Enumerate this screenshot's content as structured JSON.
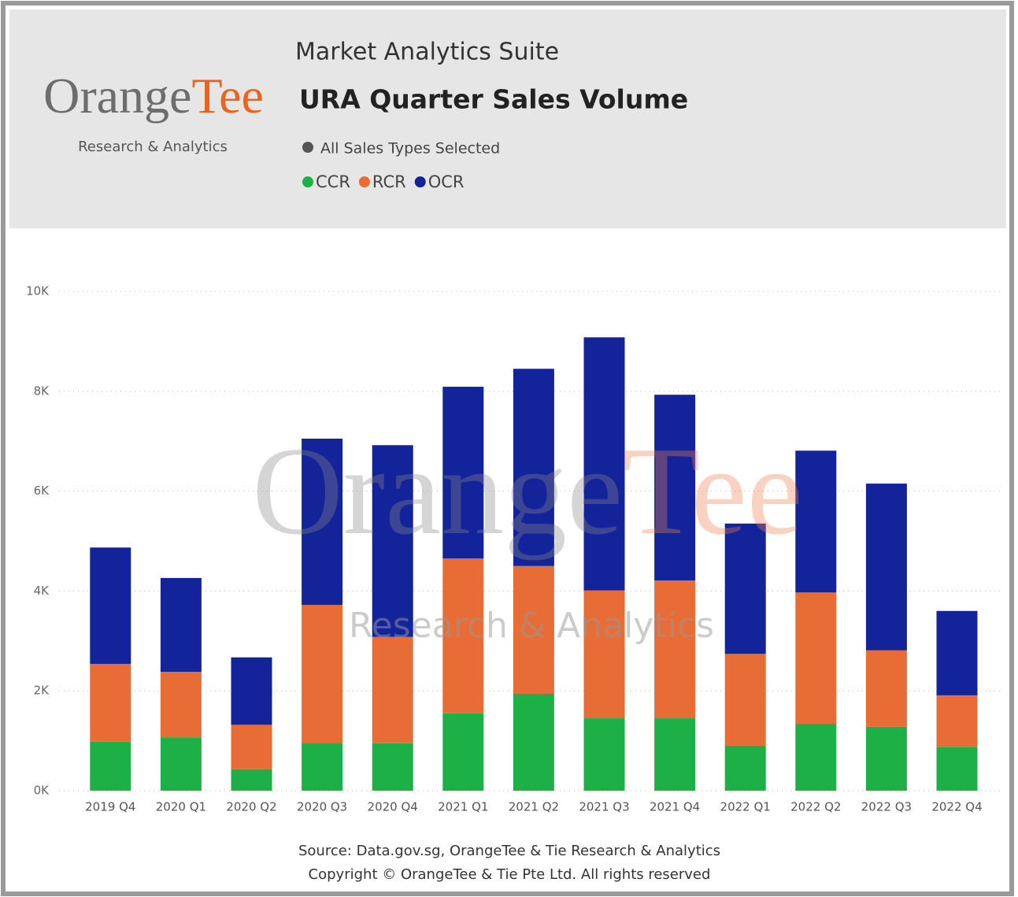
{
  "header": {
    "logo_main": "Orange",
    "logo_accent": "Tee",
    "logo_sub": "Research & Analytics",
    "suite": "Market Analytics Suite",
    "selection": "All Sales Types Selected"
  },
  "chart_data": {
    "type": "bar",
    "stacked": true,
    "title": "URA Quarter Sales Volume",
    "categories": [
      "2019 Q4",
      "2020 Q1",
      "2020 Q2",
      "2020 Q3",
      "2020 Q4",
      "2021 Q1",
      "2021 Q2",
      "2021 Q3",
      "2021 Q4",
      "2022 Q1",
      "2022 Q2",
      "2022 Q3",
      "2022 Q4"
    ],
    "series": [
      {
        "name": "CCR",
        "color": "#1db046",
        "values": [
          980,
          1070,
          430,
          960,
          950,
          1550,
          1940,
          1450,
          1450,
          900,
          1340,
          1280,
          880
        ]
      },
      {
        "name": "RCR",
        "color": "#e86c36",
        "values": [
          1560,
          1310,
          890,
          2760,
          2130,
          3100,
          2560,
          2560,
          2760,
          1840,
          2630,
          1530,
          1030
        ]
      },
      {
        "name": "OCR",
        "color": "#13239a",
        "values": [
          2330,
          1880,
          1350,
          3330,
          3840,
          3440,
          3950,
          5070,
          3720,
          2610,
          2840,
          3340,
          1690
        ]
      }
    ],
    "ylim": [
      0,
      10000
    ],
    "yticks": [
      {
        "value": 0,
        "label": "0K"
      },
      {
        "value": 2000,
        "label": "2K"
      },
      {
        "value": 4000,
        "label": "4K"
      },
      {
        "value": 6000,
        "label": "6K"
      },
      {
        "value": 8000,
        "label": "8K"
      },
      {
        "value": 10000,
        "label": "10K"
      }
    ],
    "grid": true,
    "watermark": {
      "main": "Orange",
      "accent": "Tee",
      "sub": "Research & Analytics"
    },
    "source": "Source: Data.gov.sg, OrangeTee & Tie Research & Analytics",
    "copyright": "Copyright © OrangeTee & Tie Pte Ltd. All rights reserved"
  }
}
